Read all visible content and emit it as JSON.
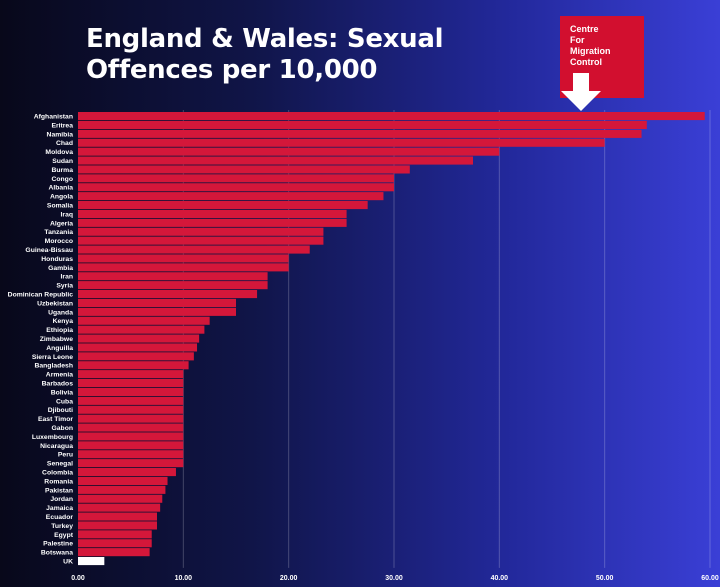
{
  "header": {
    "title_line1": "England & Wales: Sexual",
    "title_line2": "Offences per 10,000"
  },
  "logo": {
    "line1": "Centre",
    "line2": "For",
    "line3": "Migration",
    "line4": "Control",
    "arrow_icon": "down-arrow-icon"
  },
  "colors": {
    "bar": "#d4173a",
    "highlight": "#ffffff",
    "logo": "#d20f2f"
  },
  "chart_data": {
    "type": "bar",
    "orientation": "horizontal",
    "title": "England & Wales: Sexual Offences per 10,000",
    "xlim": [
      0,
      60
    ],
    "xticks": [
      "0.00",
      "10.00",
      "20.00",
      "30.00",
      "40.00",
      "50.00",
      "60.00"
    ],
    "grid": true,
    "categories": [
      "Afghanistan",
      "Eritrea",
      "Namibia",
      "Chad",
      "Moldova",
      "Sudan",
      "Burma",
      "Congo",
      "Albania",
      "Angola",
      "Somalia",
      "Iraq",
      "Algeria",
      "Tanzania",
      "Morocco",
      "Guinea-Bissau",
      "Honduras",
      "Gambia",
      "Iran",
      "Syria",
      "Dominican Republic",
      "Uzbekistan",
      "Uganda",
      "Kenya",
      "Ethiopia",
      "Zimbabwe",
      "Anguilla",
      "Sierra Leone",
      "Bangladesh",
      "Armenia",
      "Barbados",
      "Bolivia",
      "Cuba",
      "Djibouti",
      "East Timor",
      "Gabon",
      "Luxembourg",
      "Nicaragua",
      "Peru",
      "Senegal",
      "Colombia",
      "Romania",
      "Pakistan",
      "Jordan",
      "Jamaica",
      "Ecuador",
      "Turkey",
      "Egypt",
      "Palestine",
      "Botswana",
      "UK"
    ],
    "values": [
      59.5,
      54.0,
      53.5,
      50.0,
      40.0,
      37.5,
      31.5,
      30.0,
      30.0,
      29.0,
      27.5,
      25.5,
      25.5,
      23.3,
      23.3,
      22.0,
      20.0,
      20.0,
      18.0,
      18.0,
      17.0,
      15.0,
      15.0,
      12.5,
      12.0,
      11.5,
      11.3,
      11.0,
      10.5,
      10.0,
      10.0,
      10.0,
      10.0,
      10.0,
      10.0,
      10.0,
      10.0,
      10.0,
      10.0,
      10.0,
      9.3,
      8.5,
      8.3,
      8.0,
      7.8,
      7.5,
      7.5,
      7.0,
      7.0,
      6.8,
      2.5
    ],
    "highlight_category": "UK"
  }
}
